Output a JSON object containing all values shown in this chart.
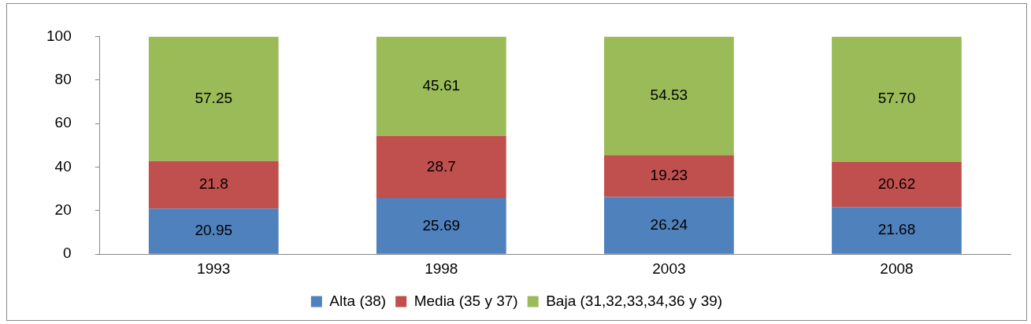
{
  "chart_data": {
    "type": "bar",
    "stacked": true,
    "categories": [
      "1993",
      "1998",
      "2003",
      "2008"
    ],
    "series": [
      {
        "name": "Alta (38)",
        "color": "#4f81bd",
        "values": [
          20.95,
          25.69,
          26.24,
          21.68
        ],
        "value_labels": [
          "20.95",
          "25.69",
          "26.24",
          "21.68"
        ]
      },
      {
        "name": "Media (35 y 37)",
        "color": "#c0504d",
        "values": [
          21.8,
          28.7,
          19.23,
          20.62
        ],
        "value_labels": [
          "21.8",
          "28.7",
          "19.23",
          "20.62"
        ]
      },
      {
        "name": "Baja (31,32,33,34,36 y 39)",
        "color": "#9bbb59",
        "values": [
          57.25,
          45.61,
          54.53,
          57.7
        ],
        "value_labels": [
          "57.25",
          "45.61",
          "54.53",
          "57.70"
        ]
      }
    ],
    "ylim": [
      0,
      100
    ],
    "yticks": [
      0,
      20,
      40,
      60,
      80,
      100
    ],
    "grid": false,
    "legend": "bottom"
  }
}
